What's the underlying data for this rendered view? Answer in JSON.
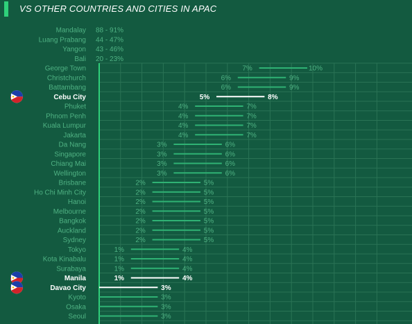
{
  "header": {
    "title": "VS OTHER COUNTRIES AND CITIES IN APAC"
  },
  "colors": {
    "background": "#135a40",
    "accent": "#2fd07a",
    "muted_text": "#4fb283",
    "bar": "#2fb274",
    "highlight": "#ffffff",
    "grid": "#2a7355"
  },
  "flag_icon": "philippines-flag-icon",
  "chart_data": {
    "type": "range-bar",
    "unit": "%",
    "title": "VS OTHER COUNTRIES AND CITIES IN APAC",
    "text_only_rows": [
      {
        "city": "Mandalay",
        "range": "88 - 91%"
      },
      {
        "city": "Luang Prabang",
        "range": "44 - 47%"
      },
      {
        "city": "Yangon",
        "range": "43 - 46%"
      },
      {
        "city": "Bali",
        "range": "20 - 23%"
      }
    ],
    "rows": [
      {
        "city": "George Town",
        "low": 7,
        "high": 10,
        "highlight": false
      },
      {
        "city": "Christchurch",
        "low": 6,
        "high": 9,
        "highlight": false
      },
      {
        "city": "Battambang",
        "low": 6,
        "high": 9,
        "highlight": false
      },
      {
        "city": "Cebu City",
        "low": 5,
        "high": 8,
        "highlight": true
      },
      {
        "city": "Phuket",
        "low": 4,
        "high": 7,
        "highlight": false
      },
      {
        "city": "Phnom Penh",
        "low": 4,
        "high": 7,
        "highlight": false
      },
      {
        "city": "Kuala Lumpur",
        "low": 4,
        "high": 7,
        "highlight": false
      },
      {
        "city": "Jakarta",
        "low": 4,
        "high": 7,
        "highlight": false
      },
      {
        "city": "Da Nang",
        "low": 3,
        "high": 6,
        "highlight": false
      },
      {
        "city": "Singapore",
        "low": 3,
        "high": 6,
        "highlight": false
      },
      {
        "city": "Chiang Mai",
        "low": 3,
        "high": 6,
        "highlight": false
      },
      {
        "city": "Wellington",
        "low": 3,
        "high": 6,
        "highlight": false
      },
      {
        "city": "Brisbane",
        "low": 2,
        "high": 5,
        "highlight": false
      },
      {
        "city": "Ho Chi Minh City",
        "low": 2,
        "high": 5,
        "highlight": false
      },
      {
        "city": "Hanoi",
        "low": 2,
        "high": 5,
        "highlight": false
      },
      {
        "city": "Melbourne",
        "low": 2,
        "high": 5,
        "highlight": false
      },
      {
        "city": "Bangkok",
        "low": 2,
        "high": 5,
        "highlight": false
      },
      {
        "city": "Auckland",
        "low": 2,
        "high": 5,
        "highlight": false
      },
      {
        "city": "Sydney",
        "low": 2,
        "high": 5,
        "highlight": false
      },
      {
        "city": "Tokyo",
        "low": 1,
        "high": 4,
        "highlight": false
      },
      {
        "city": "Kota Kinabalu",
        "low": 1,
        "high": 4,
        "highlight": false
      },
      {
        "city": "Surabaya",
        "low": 1,
        "high": 4,
        "highlight": false
      },
      {
        "city": "Manila",
        "low": 1,
        "high": 4,
        "highlight": true
      },
      {
        "city": "Davao City",
        "low": 0,
        "high": 3,
        "highlight": true
      },
      {
        "city": "Kyoto",
        "low": 0,
        "high": 3,
        "highlight": false
      },
      {
        "city": "Osaka",
        "low": 0,
        "high": 3,
        "highlight": false
      },
      {
        "city": "Seoul",
        "low": 0,
        "high": 3,
        "highlight": false
      }
    ],
    "xlim": [
      0,
      13
    ],
    "grid": true
  }
}
